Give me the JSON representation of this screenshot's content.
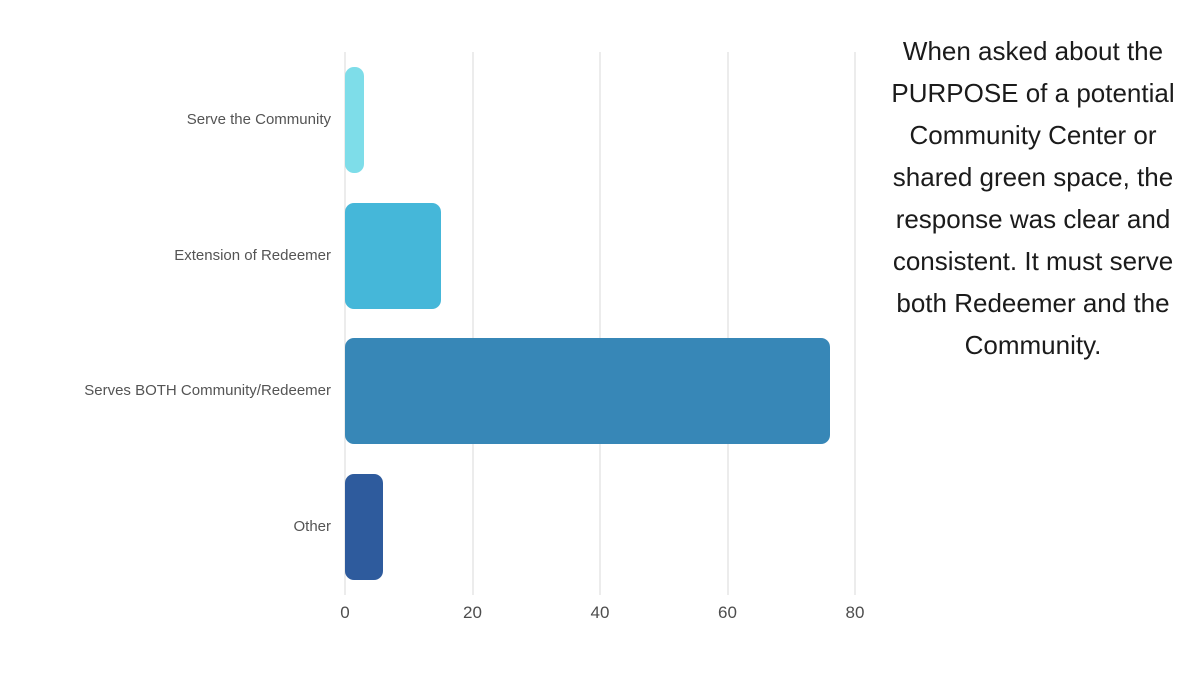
{
  "annotation": {
    "text": "When asked about the PURPOSE of a potential Community Center or shared green space, the response was clear and consistent. It must serve both Redeemer and the Community."
  },
  "chart_data": {
    "type": "bar",
    "orientation": "horizontal",
    "title": "",
    "xlabel": "",
    "ylabel": "",
    "categories": [
      "Serve the Community",
      "Extension of Redeemer",
      "Serves BOTH Community/Redeemer",
      "Other"
    ],
    "values": [
      3,
      15,
      76,
      6
    ],
    "bar_colors": [
      "#7edde9",
      "#45b7d9",
      "#3787b7",
      "#2e5b9d"
    ],
    "xlim": [
      0,
      80
    ],
    "x_ticks": [
      0,
      20,
      40,
      60,
      80
    ],
    "grid": true,
    "gridline_color": "#d9d9d9",
    "legend": "none",
    "background": "#ffffff"
  }
}
